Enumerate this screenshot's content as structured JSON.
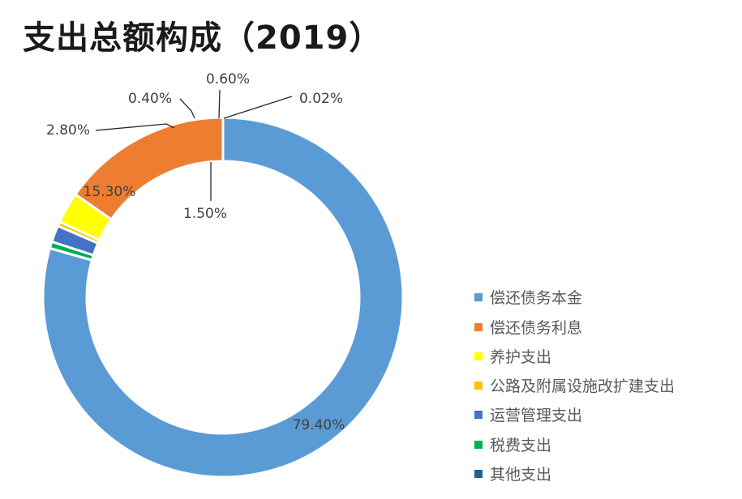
{
  "chart_data": {
    "type": "pie",
    "variant": "donut",
    "title": "支出总额构成（2019）",
    "unit": "%",
    "legend_position": "right-bottom",
    "slices": [
      {
        "name": "偿还债务本金",
        "value": 79.4,
        "label": "79.40%",
        "color": "#5B9BD5"
      },
      {
        "name": "偿还债务利息",
        "value": 15.3,
        "label": "15.30%",
        "color": "#ED7D31"
      },
      {
        "name": "养护支出",
        "value": 2.8,
        "label": "2.80%",
        "color": "#FFFF00"
      },
      {
        "name": "公路及附属设施改扩建支出",
        "value": 0.4,
        "label": "0.40%",
        "color": "#FFC000"
      },
      {
        "name": "运营管理支出",
        "value": 1.5,
        "label": "1.50%",
        "color": "#4472C4"
      },
      {
        "name": "税费支出",
        "value": 0.6,
        "label": "0.60%",
        "color": "#00B050"
      },
      {
        "name": "其他支出",
        "value": 0.02,
        "label": "0.02%",
        "color": "#255E91"
      }
    ],
    "draw_order": [
      0,
      6,
      5,
      4,
      3,
      2,
      1
    ]
  }
}
